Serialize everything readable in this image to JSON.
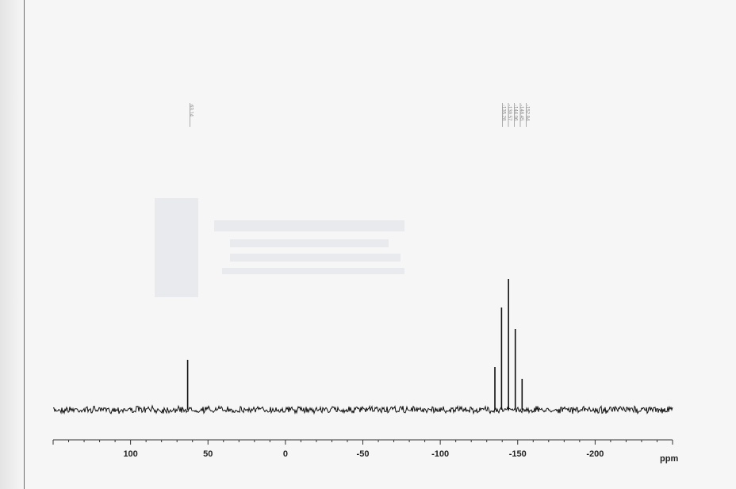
{
  "chart_data": {
    "type": "line",
    "title": "",
    "xlabel": "ppm",
    "ylabel": "",
    "xlim": [
      150,
      -250
    ],
    "x_reversed": true,
    "x_ticks": [
      100,
      50,
      0,
      -50,
      -100,
      -150,
      -200
    ],
    "x_tick_labels": [
      "100",
      "50",
      "0",
      "-50",
      "-100",
      "-150",
      "-200"
    ],
    "grid": false,
    "legend": "none",
    "peaks": [
      {
        "shift": 63.14,
        "height": 0.21,
        "label": "63.14"
      },
      {
        "shift": -135.28,
        "height": 0.18,
        "label": "-135.28"
      },
      {
        "shift": -139.57,
        "height": 0.43,
        "label": "-139.57"
      },
      {
        "shift": -144.06,
        "height": 0.55,
        "label": "-144.06"
      },
      {
        "shift": -148.45,
        "height": 0.34,
        "label": "-148.45"
      },
      {
        "shift": -152.84,
        "height": 0.13,
        "label": "-152.84"
      }
    ]
  },
  "colors": {
    "ink": "#111111",
    "axis": "#333333",
    "label": "#888888",
    "paper": "#f6f6f6"
  }
}
